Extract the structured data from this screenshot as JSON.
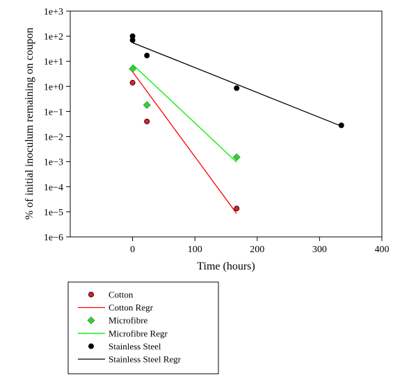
{
  "chart_data": {
    "type": "scatter",
    "xlabel": "Time (hours)",
    "ylabel": "% of initial inoculum remaining on coupon",
    "xlim": [
      -100,
      400
    ],
    "ylim": [
      1e-06,
      1000
    ],
    "y_scale": "log",
    "grid": false,
    "legend_position": "below",
    "x_ticks": [
      0,
      100,
      200,
      300,
      400
    ],
    "x_tick_labels": [
      "0",
      "100",
      "200",
      "300",
      "400"
    ],
    "y_ticks": [
      1000,
      100,
      10,
      1,
      0.1,
      0.01,
      0.001,
      0.0001,
      1e-05,
      1e-06
    ],
    "y_tick_labels": [
      "1e+3",
      "1e+2",
      "1e+1",
      "1e+0",
      "1e−1",
      "1e−2",
      "1e−3",
      "1e−4",
      "1e−5",
      "1e−6"
    ],
    "series": [
      {
        "name": "Cotton",
        "kind": "points",
        "marker": "circle",
        "color": "#e02020",
        "x": [
          0,
          23,
          167
        ],
        "y": [
          1.4,
          0.04,
          1.35e-05
        ]
      },
      {
        "name": "Cotton Regr",
        "kind": "line",
        "color": "#ff0000",
        "x": [
          0,
          167
        ],
        "y": [
          3.8,
          8.5e-06
        ]
      },
      {
        "name": "Microfibre",
        "kind": "points",
        "marker": "diamond",
        "color": "#22dd22",
        "x": [
          0,
          23,
          167
        ],
        "y": [
          5,
          0.18,
          0.0015
        ]
      },
      {
        "name": "Microfibre Regr",
        "kind": "line",
        "color": "#00ee00",
        "x": [
          0,
          167
        ],
        "y": [
          7.5,
          0.00095
        ]
      },
      {
        "name": "Stainless Steel",
        "kind": "points",
        "marker": "circle",
        "color": "#000000",
        "x": [
          0,
          0,
          23,
          167,
          335
        ],
        "y": [
          100,
          70,
          17,
          0.85,
          0.028
        ]
      },
      {
        "name": "Stainless Steel Regr",
        "kind": "line",
        "color": "#000000",
        "x": [
          0,
          335
        ],
        "y": [
          55,
          0.026
        ]
      }
    ]
  }
}
